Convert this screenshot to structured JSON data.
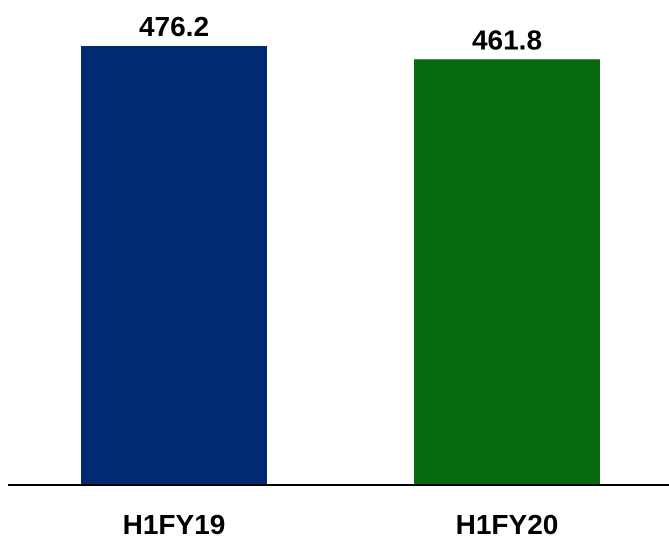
{
  "chart_data": {
    "type": "bar",
    "title": "",
    "xlabel": "",
    "ylabel": "",
    "categories": [
      "H1FY19",
      "H1FY20"
    ],
    "values": [
      476.2,
      461.8
    ],
    "value_labels": [
      "476.2",
      "461.8"
    ],
    "colors": [
      "#002b72",
      "#086a0e"
    ],
    "ylim": [
      0,
      476.2
    ],
    "grid": false,
    "legend": "none"
  }
}
